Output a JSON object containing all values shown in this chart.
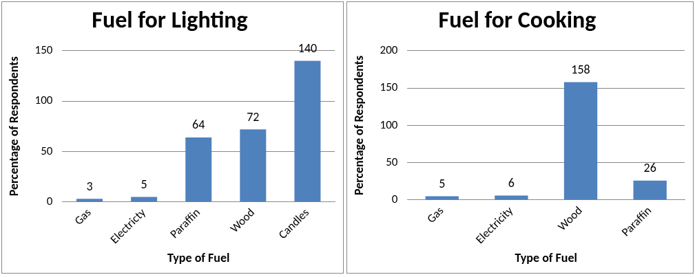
{
  "chart_data": [
    {
      "type": "bar",
      "title": "Fuel for Lighting",
      "xlabel": "Type of Fuel",
      "ylabel": "Percentage of Respondents",
      "categories": [
        "Gas",
        "Electricty",
        "Paraffin",
        "Wood",
        "Candles"
      ],
      "values": [
        3,
        5,
        64,
        72,
        140
      ],
      "color": "#4f81bd",
      "ylim": [
        0,
        150
      ],
      "yticks": [
        0,
        50,
        100,
        150
      ],
      "grid": "y",
      "legend": false,
      "data_labels": true
    },
    {
      "type": "bar",
      "title": "Fuel for Cooking",
      "xlabel": "Type of Fuel",
      "ylabel": "Percentage of Respondents",
      "categories": [
        "Gas",
        "Electricity",
        "Wood",
        "Paraffin"
      ],
      "values": [
        5,
        6,
        158,
        26
      ],
      "color": "#4f81bd",
      "ylim": [
        0,
        200
      ],
      "yticks": [
        0,
        50,
        100,
        150,
        200
      ],
      "grid": "y",
      "legend": false,
      "data_labels": true
    }
  ]
}
